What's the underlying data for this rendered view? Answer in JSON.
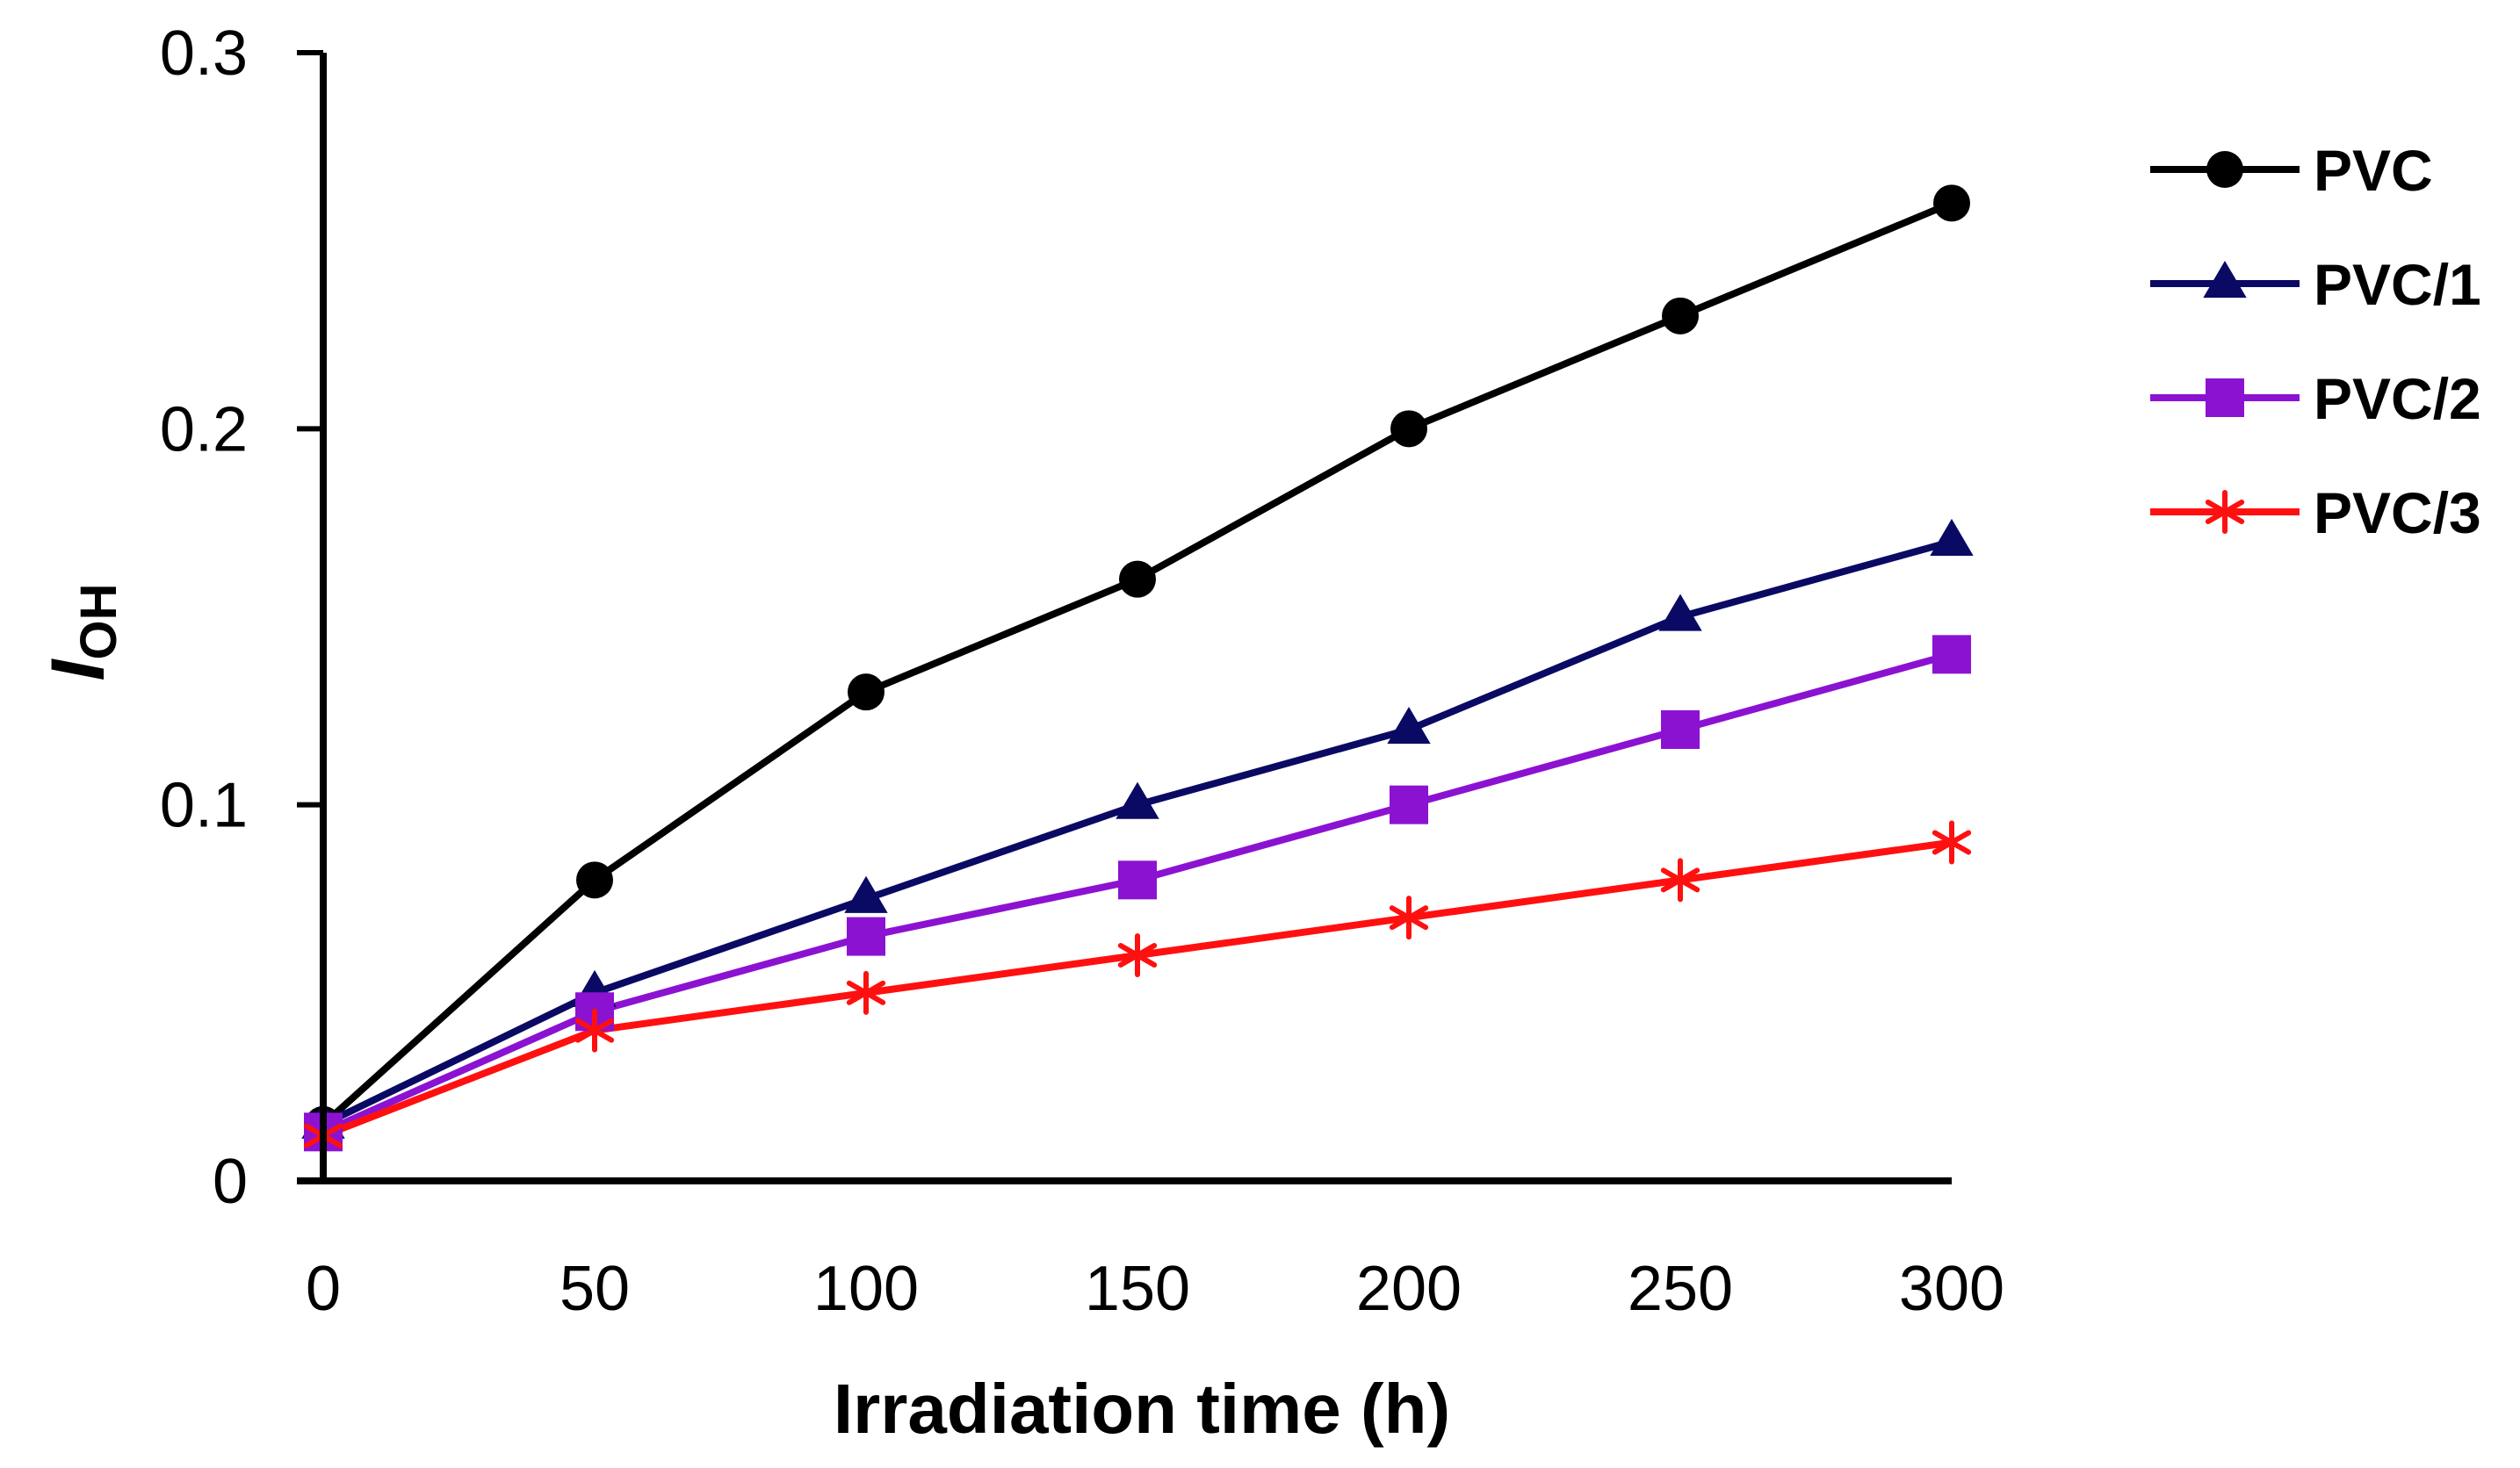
{
  "chart_data": {
    "type": "line",
    "title": "",
    "xlabel": "Irradiation time (h)",
    "ylabel": "I",
    "ylabel_subscript": "OH",
    "x": [
      0,
      50,
      100,
      150,
      200,
      250,
      300
    ],
    "xlim": [
      0,
      300
    ],
    "ylim": [
      0,
      0.3
    ],
    "xticks": [
      0,
      50,
      100,
      150,
      200,
      250,
      300
    ],
    "yticks": [
      0,
      0.1,
      0.2,
      0.3
    ],
    "ytick_labels": [
      "0",
      "0.1",
      "0.2",
      "0.3"
    ],
    "grid": false,
    "legend_position": "right",
    "series": [
      {
        "name": "PVC",
        "color": "#000000",
        "marker": "circle",
        "values": [
          0.015,
          0.08,
          0.13,
          0.16,
          0.2,
          0.23,
          0.26
        ]
      },
      {
        "name": "PVC/1",
        "color": "#0a0a64",
        "marker": "triangle",
        "values": [
          0.015,
          0.05,
          0.075,
          0.1,
          0.12,
          0.15,
          0.17
        ]
      },
      {
        "name": "PVC/2",
        "color": "#8c12d2",
        "marker": "square",
        "values": [
          0.013,
          0.045,
          0.065,
          0.08,
          0.1,
          0.12,
          0.14
        ]
      },
      {
        "name": "PVC/3",
        "color": "#ff1010",
        "marker": "asterisk",
        "values": [
          0.012,
          0.04,
          0.05,
          0.06,
          0.07,
          0.08,
          0.09
        ]
      }
    ]
  }
}
